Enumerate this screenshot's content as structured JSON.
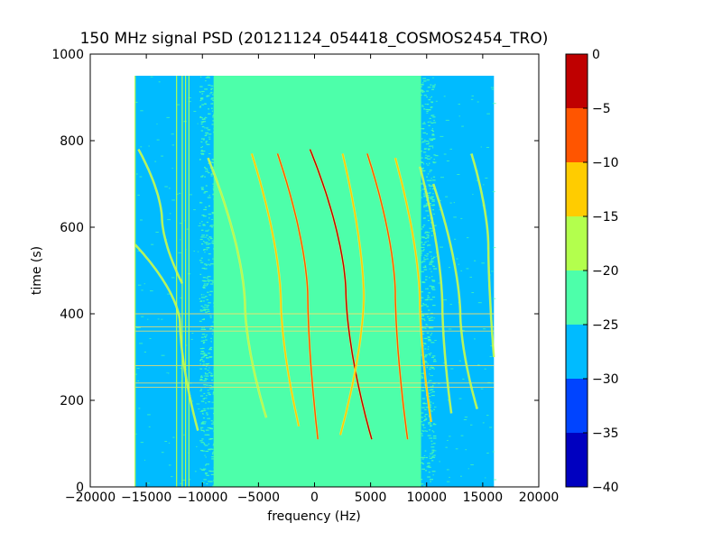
{
  "chart_data": {
    "type": "heatmap",
    "title": "150 MHz signal PSD (20121124_054418_COSMOS2454_TRO)",
    "xlabel": "frequency (Hz)",
    "ylabel": "time (s)",
    "xlim": [
      -20000,
      20000
    ],
    "ylim": [
      0,
      1000
    ],
    "xticks": [
      -20000,
      -15000,
      -10000,
      -5000,
      0,
      5000,
      10000,
      15000,
      20000
    ],
    "yticks": [
      0,
      200,
      400,
      600,
      800,
      1000
    ],
    "grid": false,
    "data_extent": {
      "x": [
        -16000,
        16000
      ],
      "y": [
        0,
        950
      ]
    },
    "noise_floor_band": {
      "x": [
        -9000,
        9500
      ],
      "level_range": [
        -25,
        -20
      ]
    },
    "outer_band_level_range": [
      -30,
      -25
    ],
    "traces": [
      {
        "name": "trace-1",
        "t_start": 470,
        "t_end": 780,
        "f_top": -15700,
        "f_mid": -13600,
        "f_bottom": -11800,
        "t_mid": 620,
        "level": -20
      },
      {
        "name": "trace-2",
        "t_start": 130,
        "t_end": 560,
        "f_top": -16000,
        "f_mid": -12000,
        "f_bottom": -10400,
        "t_mid": 380,
        "level": -20
      },
      {
        "name": "trace-3",
        "t_start": 160,
        "t_end": 760,
        "f_top": -9500,
        "f_mid": -6200,
        "f_bottom": -4300,
        "t_mid": 420,
        "level": -20
      },
      {
        "name": "trace-4",
        "t_start": 140,
        "t_end": 770,
        "f_top": -5600,
        "f_mid": -3000,
        "f_bottom": -1400,
        "t_mid": 430,
        "level": -15
      },
      {
        "name": "trace-5",
        "t_start": 110,
        "t_end": 770,
        "f_top": -3300,
        "f_mid": -600,
        "f_bottom": 300,
        "t_mid": 440,
        "level": -10
      },
      {
        "name": "trace-6",
        "t_start": 110,
        "t_end": 780,
        "f_top": -400,
        "f_mid": 2800,
        "f_bottom": 5100,
        "t_mid": 450,
        "level": -5
      },
      {
        "name": "trace-7",
        "t_start": 120,
        "t_end": 770,
        "f_top": 2500,
        "f_mid": 4400,
        "f_bottom": 2300,
        "t_mid": 440,
        "level": -15
      },
      {
        "name": "trace-8",
        "t_start": 110,
        "t_end": 770,
        "f_top": 4700,
        "f_mid": 7200,
        "f_bottom": 8300,
        "t_mid": 450,
        "level": -10
      },
      {
        "name": "trace-9",
        "t_start": 150,
        "t_end": 760,
        "f_top": 7200,
        "f_mid": 9400,
        "f_bottom": 10400,
        "t_mid": 430,
        "level": -15
      },
      {
        "name": "trace-10",
        "t_start": 170,
        "t_end": 740,
        "f_top": 9400,
        "f_mid": 11400,
        "f_bottom": 12200,
        "t_mid": 420,
        "level": -20
      },
      {
        "name": "trace-11",
        "t_start": 180,
        "t_end": 700,
        "f_top": 10600,
        "f_mid": 13000,
        "f_bottom": 14500,
        "t_mid": 400,
        "level": -20
      },
      {
        "name": "trace-12",
        "t_start": 300,
        "t_end": 770,
        "f_top": 14000,
        "f_mid": 15500,
        "f_bottom": 16000,
        "t_mid": 560,
        "level": -20
      }
    ],
    "vertical_lines": [
      {
        "f": -16000,
        "level": -20
      },
      {
        "f": -12300,
        "level": -20
      },
      {
        "f": -11800,
        "level": -20
      },
      {
        "f": -11500,
        "level": -20
      },
      {
        "f": -11200,
        "level": -20
      }
    ],
    "horizontal_lines": [
      {
        "t": 230,
        "level": -20
      },
      {
        "t": 240,
        "level": -20
      },
      {
        "t": 280,
        "level": -20
      },
      {
        "t": 360,
        "level": -20
      },
      {
        "t": 370,
        "level": -20
      },
      {
        "t": 400,
        "level": -20
      }
    ],
    "colorbar": {
      "ticks": [
        0,
        -5,
        -10,
        -15,
        -20,
        -25,
        -30,
        -35,
        -40
      ],
      "tick_labels": [
        "0",
        "−5",
        "−10",
        "−15",
        "−20",
        "−25",
        "−30",
        "−35",
        "−40"
      ],
      "range": [
        -40,
        0
      ],
      "levels": [
        {
          "min": -5,
          "max": 0,
          "color": "#bf0000"
        },
        {
          "min": -10,
          "max": -5,
          "color": "#ff5500"
        },
        {
          "min": -15,
          "max": -10,
          "color": "#ffcc00"
        },
        {
          "min": -20,
          "max": -15,
          "color": "#b3ff4d"
        },
        {
          "min": -25,
          "max": -20,
          "color": "#4dffaa"
        },
        {
          "min": -30,
          "max": -25,
          "color": "#00bbff"
        },
        {
          "min": -35,
          "max": -30,
          "color": "#0044ff"
        },
        {
          "min": -40,
          "max": -35,
          "color": "#0000c0"
        }
      ]
    },
    "xtick_labels": [
      "−20000",
      "−15000",
      "−10000",
      "−5000",
      "0",
      "5000",
      "10000",
      "15000",
      "20000"
    ],
    "ytick_labels": [
      "0",
      "200",
      "400",
      "600",
      "800",
      "1000"
    ]
  }
}
